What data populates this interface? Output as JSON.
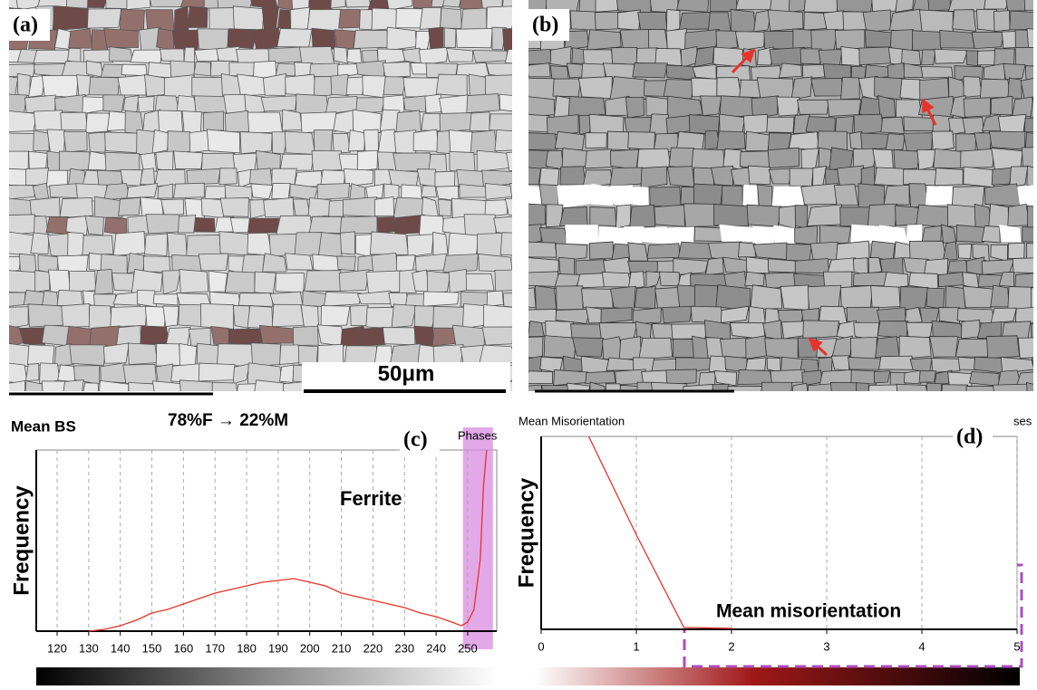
{
  "panels": {
    "a": {
      "label": "(a)",
      "scale_bar": "50μm"
    },
    "b": {
      "label": "(b)"
    }
  },
  "chart_data": [
    {
      "type": "line",
      "title": "Mean BS",
      "subtitle": "78%F → 22%M",
      "panel_label": "(c)",
      "phase_label": "Phases",
      "y_label": "Frequency",
      "annotation": "Ferrite",
      "color": "#e8332a",
      "highlight_color": "#d98be0",
      "highlight": [
        248.5,
        258
      ],
      "x": [
        130,
        135,
        140,
        145,
        150,
        155,
        160,
        165,
        170,
        175,
        180,
        185,
        190,
        195,
        200,
        205,
        210,
        215,
        220,
        225,
        230,
        235,
        240,
        245,
        248,
        250,
        252,
        254,
        255,
        256
      ],
      "values": [
        0,
        1,
        3,
        6,
        10,
        12,
        15,
        18,
        21,
        23,
        25,
        27,
        28,
        29,
        27,
        25,
        21,
        19,
        17,
        15,
        13,
        10,
        8,
        5,
        3,
        5,
        12,
        40,
        80,
        100
      ],
      "xlim": [
        113.4,
        259.2
      ],
      "xticks": [
        120,
        130,
        140,
        150,
        160,
        170,
        180,
        190,
        200,
        210,
        220,
        230,
        240,
        250
      ],
      "ylim": [
        0,
        100
      ],
      "grid": true
    },
    {
      "type": "line",
      "title": "Mean Misorientation",
      "panel_label": "(d)",
      "phase_label": "ses",
      "y_label": "Frequency",
      "annotation": "Mean misorientation",
      "color": "#e8332a",
      "x": [
        0.5,
        1,
        1.5,
        2
      ],
      "values": [
        100,
        49,
        1,
        0.5
      ],
      "xlim": [
        0,
        5
      ],
      "xticks": [
        0,
        1,
        2,
        3,
        4,
        5
      ],
      "ylim": [
        0,
        100
      ],
      "grid": true
    }
  ]
}
